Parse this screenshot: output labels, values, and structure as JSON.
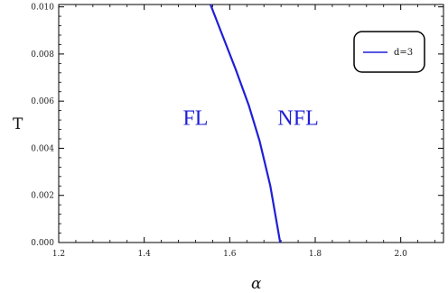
{
  "chart_data": {
    "type": "line",
    "xlabel": "α",
    "ylabel": "T",
    "xlim": [
      1.2,
      2.1
    ],
    "ylim": [
      0.0,
      0.0101
    ],
    "x_ticks": [
      1.2,
      1.4,
      1.6,
      1.8,
      2.0
    ],
    "x_tick_labels": [
      "1.2",
      "1.4",
      "1.6",
      "1.8",
      "2.0"
    ],
    "y_ticks": [
      0.0,
      0.002,
      0.004,
      0.006,
      0.008,
      0.01
    ],
    "y_tick_labels": [
      "0.000",
      "0.002",
      "0.004",
      "0.006",
      "0.008",
      "0.010"
    ],
    "grid": false,
    "legend_position": "top-right",
    "series": [
      {
        "name": "d=3",
        "color": "#1f1fd6",
        "points": [
          [
            1.555,
            0.0101
          ],
          [
            1.585,
            0.0087
          ],
          [
            1.615,
            0.0073
          ],
          [
            1.645,
            0.0058
          ],
          [
            1.67,
            0.0043
          ],
          [
            1.695,
            0.0024
          ],
          [
            1.718,
            0.0
          ]
        ]
      }
    ],
    "annotations": [
      {
        "text": "FL",
        "x": 1.52,
        "y": 0.005
      },
      {
        "text": "NFL",
        "x": 1.76,
        "y": 0.005
      }
    ]
  }
}
